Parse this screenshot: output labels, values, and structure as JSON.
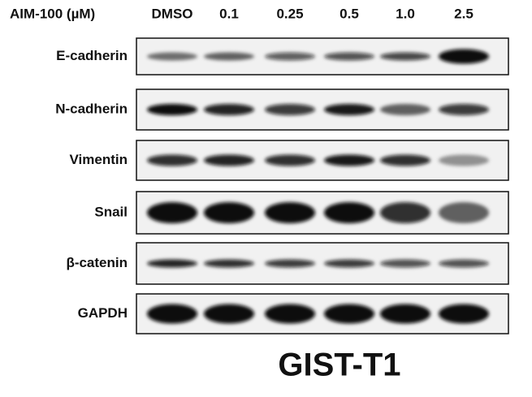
{
  "header": {
    "treatment": "AIM-100 (µM)",
    "lanes": [
      "DMSO",
      "0.1",
      "0.25",
      "0.5",
      "1.0",
      "2.5"
    ]
  },
  "rows": [
    "E-cadherin",
    "N-cadherin",
    "Vimentin",
    "Snail",
    "β-catenin",
    "GAPDH"
  ],
  "footer": {
    "cell_line": "GIST-T1"
  }
}
